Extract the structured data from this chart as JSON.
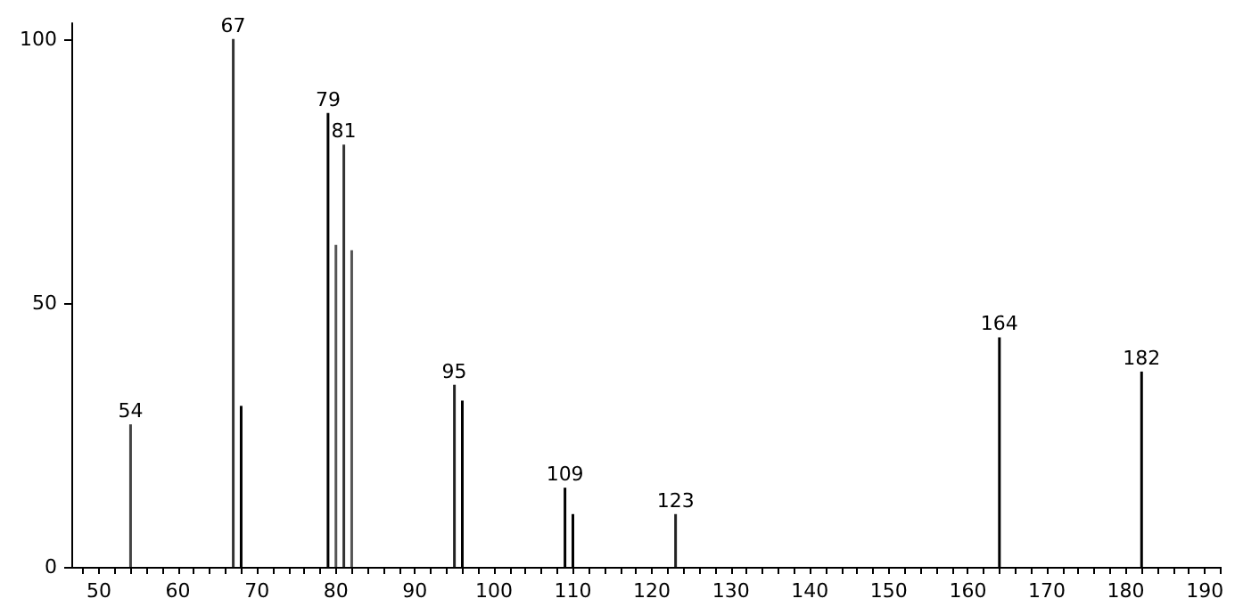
{
  "chart_data": {
    "type": "bar",
    "x": [
      54,
      67,
      68,
      79,
      80,
      81,
      82,
      95,
      96,
      109,
      110,
      123,
      164,
      182
    ],
    "values": [
      27,
      100,
      30.5,
      86,
      61,
      80,
      60,
      34.5,
      31.5,
      15,
      10,
      10,
      43.5,
      37
    ],
    "colors": [
      "#444444",
      "#333333",
      "#000000",
      "#000000",
      "#555555",
      "#333333",
      "#555555",
      "#222222",
      "#000000",
      "#000000",
      "#000000",
      "#222222",
      "#000000",
      "#000000"
    ],
    "annotations": [
      {
        "text": "54",
        "x": 54,
        "y": 27
      },
      {
        "text": "67",
        "x": 67,
        "y": 100
      },
      {
        "text": "79",
        "x": 79,
        "y": 86
      },
      {
        "text": "81",
        "x": 81,
        "y": 80
      },
      {
        "text": "95",
        "x": 95,
        "y": 34.5
      },
      {
        "text": "109",
        "x": 109,
        "y": 15
      },
      {
        "text": "123",
        "x": 123,
        "y": 10
      },
      {
        "text": "164",
        "x": 164,
        "y": 43.5
      },
      {
        "text": "182",
        "x": 182,
        "y": 37
      }
    ],
    "xlim": [
      46.5,
      192
    ],
    "xticks": [
      {
        "value": 48,
        "label": null
      },
      50,
      {
        "value": 52,
        "label": null
      },
      {
        "value": 54,
        "label": null
      },
      {
        "value": 56,
        "label": null
      },
      {
        "value": 58,
        "label": null
      },
      60,
      {
        "value": 62,
        "label": null
      },
      {
        "value": 64,
        "label": null
      },
      {
        "value": 66,
        "label": null
      },
      {
        "value": 68,
        "label": null
      },
      70,
      {
        "value": 72,
        "label": null
      },
      {
        "value": 74,
        "label": null
      },
      {
        "value": 76,
        "label": null
      },
      {
        "value": 78,
        "label": null
      },
      80,
      {
        "value": 82,
        "label": null
      },
      {
        "value": 84,
        "label": null
      },
      {
        "value": 86,
        "label": null
      },
      {
        "value": 88,
        "label": null
      },
      90,
      {
        "value": 92,
        "label": null
      },
      {
        "value": 94,
        "label": null
      },
      {
        "value": 96,
        "label": null
      },
      {
        "value": 98,
        "label": null
      },
      100,
      {
        "value": 102,
        "label": null
      },
      {
        "value": 104,
        "label": null
      },
      {
        "value": 106,
        "label": null
      },
      {
        "value": 108,
        "label": null
      },
      110,
      {
        "value": 112,
        "label": null
      },
      {
        "value": 114,
        "label": null
      },
      {
        "value": 116,
        "label": null
      },
      {
        "value": 118,
        "label": null
      },
      120,
      {
        "value": 122,
        "label": null
      },
      {
        "value": 124,
        "label": null
      },
      {
        "value": 126,
        "label": null
      },
      {
        "value": 128,
        "label": null
      },
      130,
      {
        "value": 132,
        "label": null
      },
      {
        "value": 134,
        "label": null
      },
      {
        "value": 136,
        "label": null
      },
      {
        "value": 138,
        "label": null
      },
      140,
      {
        "value": 142,
        "label": null
      },
      {
        "value": 144,
        "label": null
      },
      {
        "value": 146,
        "label": null
      },
      {
        "value": 148,
        "label": null
      },
      150,
      {
        "value": 152,
        "label": null
      },
      {
        "value": 154,
        "label": null
      },
      {
        "value": 156,
        "label": null
      },
      {
        "value": 158,
        "label": null
      },
      160,
      {
        "value": 162,
        "label": null
      },
      {
        "value": 164,
        "label": null
      },
      {
        "value": 166,
        "label": null
      },
      {
        "value": 168,
        "label": null
      },
      170,
      {
        "value": 172,
        "label": null
      },
      {
        "value": 174,
        "label": null
      },
      {
        "value": 176,
        "label": null
      },
      {
        "value": 178,
        "label": null
      },
      180,
      {
        "value": 182,
        "label": null
      },
      {
        "value": 184,
        "label": null
      },
      {
        "value": 186,
        "label": null
      },
      {
        "value": 188,
        "label": null
      },
      190,
      {
        "value": 192,
        "label": null
      }
    ],
    "ylim": [
      0,
      103
    ],
    "yticks": [
      0,
      50,
      100
    ],
    "grid": false
  }
}
